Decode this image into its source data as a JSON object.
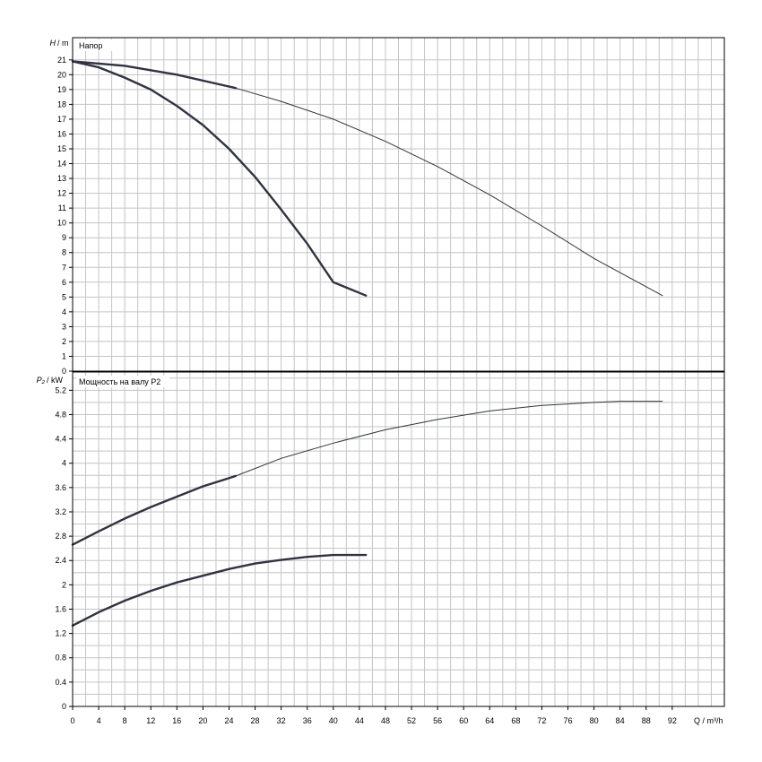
{
  "chart_data": [
    {
      "type": "line",
      "title": "Напор",
      "ylabel_symbol": "H",
      "ylabel_unit": "/ m",
      "xlabel": "Q / m³/h",
      "xlim": [
        0,
        100
      ],
      "ylim": [
        0,
        22.5
      ],
      "yticks": [
        0,
        1,
        2,
        3,
        4,
        5,
        6,
        7,
        8,
        9,
        10,
        11,
        12,
        13,
        14,
        15,
        16,
        17,
        18,
        19,
        20,
        21
      ],
      "xticks": [
        0,
        4,
        8,
        12,
        16,
        20,
        24,
        28,
        32,
        36,
        40,
        44,
        48,
        52,
        56,
        60,
        64,
        68,
        72,
        76,
        80,
        84,
        88,
        92
      ],
      "grid": true,
      "series": [
        {
          "style": "thick",
          "x": [
            0,
            4,
            8,
            12,
            16,
            20,
            24,
            28,
            32,
            36,
            40,
            45
          ],
          "y": [
            20.9,
            20.5,
            19.8,
            19.0,
            17.9,
            16.6,
            15.0,
            13.1,
            10.9,
            8.6,
            6.0,
            5.1
          ]
        },
        {
          "style": "thick",
          "x": [
            0,
            8,
            16,
            25
          ],
          "y": [
            20.9,
            20.6,
            20.0,
            19.1
          ]
        },
        {
          "style": "thin",
          "x": [
            25,
            32,
            40,
            48,
            56,
            64,
            72,
            80,
            90.5
          ],
          "y": [
            19.1,
            18.2,
            17.0,
            15.5,
            13.8,
            11.9,
            9.8,
            7.6,
            5.1
          ]
        }
      ]
    },
    {
      "type": "line",
      "title": "Мощность на валу P2",
      "ylabel_symbol": "P₂",
      "ylabel_unit": "/ kW",
      "xlabel": "Q / m³/h",
      "xlim": [
        0,
        100
      ],
      "ylim": [
        0,
        5.5
      ],
      "yticks": [
        "0",
        "0.4",
        "0.8",
        "1.2",
        "1.6",
        "2",
        "2.4",
        "2.8",
        "3.2",
        "3.6",
        "4",
        "4.4",
        "4.8",
        "5.2"
      ],
      "xticks": [
        0,
        4,
        8,
        12,
        16,
        20,
        24,
        28,
        32,
        36,
        40,
        44,
        48,
        52,
        56,
        60,
        64,
        68,
        72,
        76,
        80,
        84,
        88,
        92
      ],
      "grid": true,
      "series": [
        {
          "style": "thick",
          "x": [
            0,
            4,
            8,
            12,
            16,
            20,
            24,
            28,
            32,
            36,
            40,
            45
          ],
          "y": [
            1.33,
            1.55,
            1.74,
            1.9,
            2.04,
            2.15,
            2.26,
            2.35,
            2.41,
            2.46,
            2.49,
            2.49
          ]
        },
        {
          "style": "thick",
          "x": [
            0,
            4,
            8,
            12,
            16,
            20,
            25
          ],
          "y": [
            2.66,
            2.88,
            3.09,
            3.28,
            3.45,
            3.62,
            3.79
          ]
        },
        {
          "style": "thin",
          "x": [
            25,
            32,
            40,
            48,
            56,
            64,
            72,
            80,
            84,
            90.5
          ],
          "y": [
            3.79,
            4.08,
            4.33,
            4.55,
            4.72,
            4.86,
            4.95,
            5.0,
            5.02,
            5.02
          ]
        }
      ]
    }
  ]
}
